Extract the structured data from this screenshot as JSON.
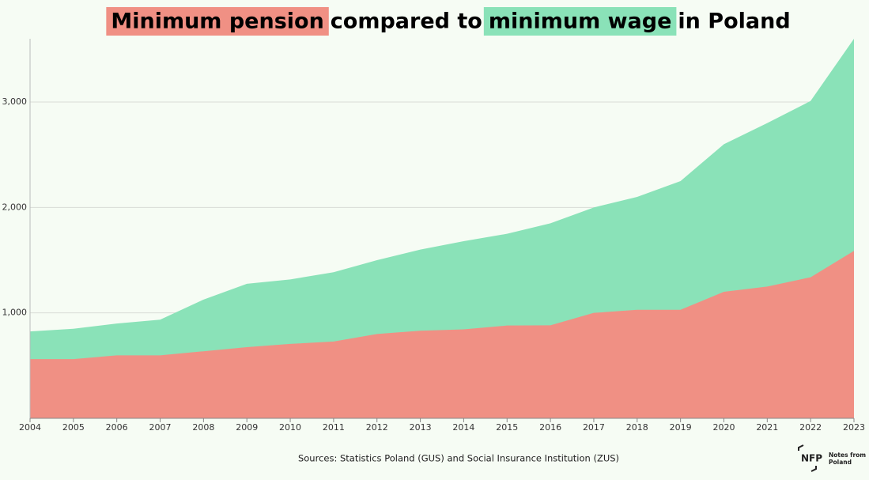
{
  "chart_data": {
    "type": "area",
    "title_parts": [
      "Minimum pension",
      "compared to",
      "minimum wage",
      "in Poland"
    ],
    "x": [
      2004,
      2005,
      2006,
      2007,
      2008,
      2009,
      2010,
      2011,
      2012,
      2013,
      2014,
      2015,
      2016,
      2017,
      2018,
      2019,
      2020,
      2021,
      2022,
      2023
    ],
    "series": [
      {
        "name": "minimum wage",
        "color": "#8ae2b8",
        "values": [
          824,
          849,
          899,
          936,
          1126,
          1276,
          1317,
          1386,
          1500,
          1600,
          1680,
          1750,
          1850,
          2000,
          2100,
          2250,
          2600,
          2800,
          3010,
          3600
        ]
      },
      {
        "name": "Minimum pension",
        "color": "#f09084",
        "values": [
          562,
          562,
          597,
          597,
          636,
          675,
          706,
          728,
          800,
          831,
          844,
          880,
          882,
          1000,
          1029,
          1029,
          1200,
          1250,
          1338,
          1588
        ]
      }
    ],
    "xlim": [
      2004,
      2023
    ],
    "xticks": [
      2004,
      2005,
      2006,
      2007,
      2008,
      2009,
      2010,
      2011,
      2012,
      2013,
      2014,
      2015,
      2016,
      2017,
      2018,
      2019,
      2020,
      2021,
      2022,
      2023
    ],
    "ylim": [
      0,
      3600
    ],
    "yticks": [
      {
        "value": 1000,
        "label": "1,000"
      },
      {
        "value": 2000,
        "label": "2,000"
      },
      {
        "value": 3000,
        "label": "3,000"
      }
    ],
    "grid": true,
    "source": "Sources: Statistics Poland (GUS) and Social Insurance Institution (ZUS)",
    "logo": {
      "mark": "NFP",
      "line1": "Notes from",
      "line2": "Poland"
    }
  }
}
